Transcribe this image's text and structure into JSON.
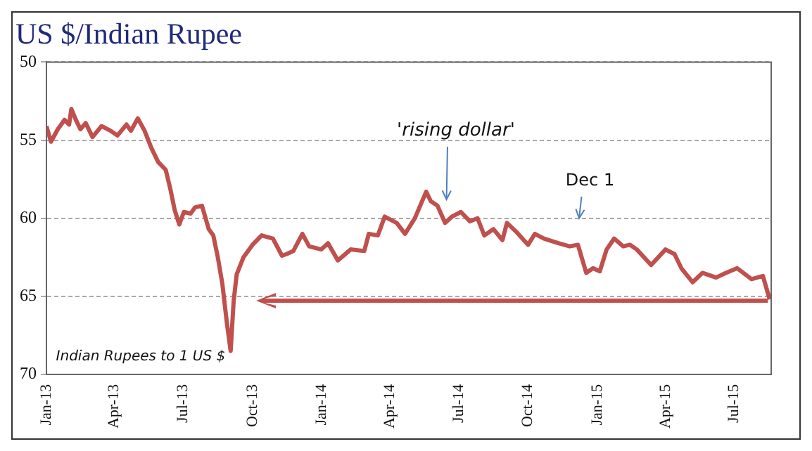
{
  "chart_data": {
    "type": "line",
    "title": "US $/Indian Rupee",
    "x": [
      "2013-01-01",
      "2013-01-07",
      "2013-01-16",
      "2013-01-25",
      "2013-01-31",
      "2013-02-03",
      "2013-02-09",
      "2013-02-15",
      "2013-02-22",
      "2013-03-03",
      "2013-03-15",
      "2013-03-27",
      "2013-04-05",
      "2013-04-17",
      "2013-04-23",
      "2013-05-02",
      "2013-05-11",
      "2013-05-20",
      "2013-05-29",
      "2013-06-08",
      "2013-06-14",
      "2013-06-20",
      "2013-06-26",
      "2013-07-02",
      "2013-07-11",
      "2013-07-17",
      "2013-07-26",
      "2013-08-04",
      "2013-08-10",
      "2013-08-16",
      "2013-08-22",
      "2013-08-28",
      "2013-09-02",
      "2013-09-06",
      "2013-09-10",
      "2013-09-19",
      "2013-10-01",
      "2013-10-13",
      "2013-10-28",
      "2013-11-09",
      "2013-11-15",
      "2013-11-24",
      "2013-12-06",
      "2013-12-15",
      "2013-12-31",
      "2014-01-09",
      "2014-01-22",
      "2014-02-08",
      "2014-02-26",
      "2014-03-04",
      "2014-03-16",
      "2014-03-25",
      "2014-04-10",
      "2014-04-21",
      "2014-05-04",
      "2014-05-19",
      "2014-05-25",
      "2014-06-03",
      "2014-06-13",
      "2014-06-22",
      "2014-07-04",
      "2014-07-16",
      "2014-07-26",
      "2014-08-04",
      "2014-08-16",
      "2014-08-28",
      "2014-09-03",
      "2014-09-16",
      "2014-10-01",
      "2014-10-10",
      "2014-10-22",
      "2014-11-10",
      "2014-11-25",
      "2014-12-06",
      "2014-12-17",
      "2014-12-26",
      "2015-01-04",
      "2015-01-13",
      "2015-01-23",
      "2015-02-04",
      "2015-02-13",
      "2015-02-22",
      "2015-03-13",
      "2015-04-01",
      "2015-04-13",
      "2015-04-22",
      "2015-05-07",
      "2015-05-20",
      "2015-06-07",
      "2015-06-20",
      "2015-07-05",
      "2015-07-24",
      "2015-08-08",
      "2015-08-17"
    ],
    "series": [
      {
        "color": "#c0504d",
        "values": [
          54.1,
          55.1,
          54.3,
          53.7,
          54.0,
          53.0,
          53.7,
          54.3,
          53.9,
          54.8,
          54.1,
          54.4,
          54.7,
          54.0,
          54.4,
          53.6,
          54.4,
          55.5,
          56.4,
          56.9,
          58.1,
          59.5,
          60.4,
          59.6,
          59.7,
          59.3,
          59.2,
          60.7,
          61.1,
          62.5,
          64.2,
          66.7,
          68.5,
          65.3,
          63.6,
          62.5,
          61.7,
          61.1,
          61.3,
          62.4,
          62.3,
          62.1,
          61.0,
          61.8,
          62.0,
          61.6,
          62.7,
          62.0,
          62.1,
          61.0,
          61.1,
          59.9,
          60.3,
          61.0,
          60.0,
          58.3,
          58.9,
          59.2,
          60.3,
          59.9,
          59.6,
          60.2,
          60.0,
          61.1,
          60.7,
          61.4,
          60.3,
          60.9,
          61.7,
          61.0,
          61.3,
          61.6,
          61.8,
          61.7,
          63.5,
          63.2,
          63.4,
          62.0,
          61.3,
          61.8,
          61.7,
          62.0,
          63.0,
          62.0,
          62.3,
          63.2,
          64.1,
          63.5,
          63.8,
          63.5,
          63.2,
          63.9,
          63.7,
          65.2
        ]
      }
    ],
    "xlim": [
      "2013-01-01",
      "2015-08-19"
    ],
    "xticks": [
      {
        "value": "2013-01-01",
        "label": "Jan-13"
      },
      {
        "value": "2013-04-01",
        "label": "Apr-13"
      },
      {
        "value": "2013-07-01",
        "label": "Jul-13"
      },
      {
        "value": "2013-10-01",
        "label": "Oct-13"
      },
      {
        "value": "2014-01-01",
        "label": "Jan-14"
      },
      {
        "value": "2014-04-01",
        "label": "Apr-14"
      },
      {
        "value": "2014-07-01",
        "label": "Jul-14"
      },
      {
        "value": "2014-10-01",
        "label": "Oct-14"
      },
      {
        "value": "2015-01-01",
        "label": "Jan-15"
      },
      {
        "value": "2015-04-01",
        "label": "Apr-15"
      },
      {
        "value": "2015-07-01",
        "label": "Jul-15"
      }
    ],
    "ylim": [
      70,
      50
    ],
    "yticks": [
      50,
      55,
      60,
      65,
      70
    ],
    "grid": "y",
    "legend": false,
    "marker": "none",
    "line_style": "solid",
    "annotations": [
      "'rising dollar'",
      "Dec 1",
      "Indian Rupees to 1 US $"
    ]
  }
}
